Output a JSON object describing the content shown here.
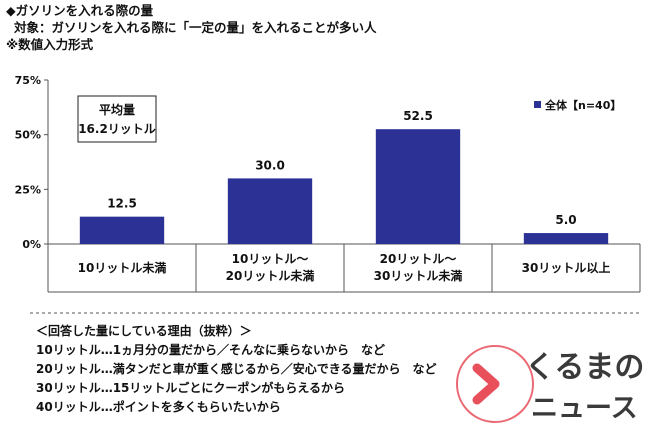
{
  "header": {
    "title": "◆ガソリンを入れる際の量",
    "target": "対象：ガソリンを入れる際に「一定の量」を入れることが多い人",
    "note": "※数値入力形式"
  },
  "chart_data": {
    "type": "bar",
    "categories": [
      [
        "10リットル未満"
      ],
      [
        "10リットル～",
        "20リットル未満"
      ],
      [
        "20リットル～",
        "30リットル未満"
      ],
      [
        "30リットル以上"
      ]
    ],
    "series": [
      {
        "name": "全体【n=40】",
        "values": [
          12.5,
          30.0,
          52.5,
          5.0
        ]
      }
    ],
    "value_labels": [
      "12.5",
      "30.0",
      "52.5",
      "5.0"
    ],
    "ylim": [
      0,
      75
    ],
    "yticks": [
      0,
      25,
      50,
      75
    ],
    "ytick_labels": [
      "0%",
      "25%",
      "50%",
      "75%"
    ],
    "legend_position": "top-right",
    "grid": false,
    "bar_color": "#2b3195",
    "annotation": {
      "line1": "平均量",
      "line2": "16.2リットル"
    }
  },
  "reasons": {
    "heading": "＜回答した量にしている理由（抜粋）＞",
    "items": [
      "10リットル…1ヵ月分の量だから／そんなに乗らないから　など",
      "20リットル…満タンだと車が重く感じるから／安心できる量だから　など",
      "30リットル…15リットルごとにクーポンがもらえるから",
      "40リットル…ポイントを多くもらいたいから"
    ]
  },
  "logo": {
    "top": "くるまの",
    "bottom": "ニュース",
    "accent_color": "#e8505b"
  }
}
